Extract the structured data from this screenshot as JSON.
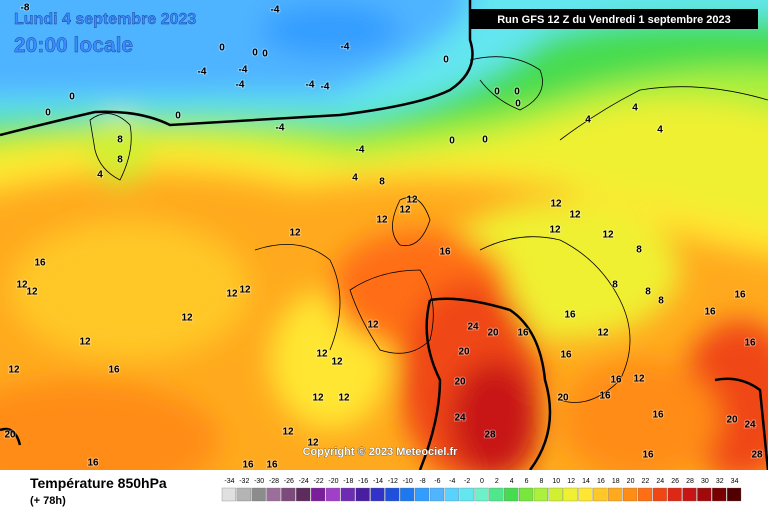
{
  "header": {
    "date": "Lundi 4 septembre 2023",
    "time": "20:00 locale",
    "run": "Run GFS 12 Z du Vendredi 1 septembre 2023",
    "copyright": "Copyright © 2023 Meteociel.fr"
  },
  "map": {
    "contour_labels": [
      -8,
      -4,
      0,
      0,
      0,
      -4,
      -4,
      -4,
      -4,
      -4,
      -4,
      0,
      0,
      0,
      0,
      0,
      0,
      0,
      -4,
      -4,
      8,
      8,
      4,
      4,
      8,
      0,
      0,
      4,
      4,
      4,
      12,
      12,
      12,
      12,
      12,
      12,
      16,
      16,
      12,
      12,
      12,
      12,
      12,
      12,
      12,
      12,
      12,
      12,
      16,
      24,
      20,
      16,
      20,
      20,
      24,
      28,
      16,
      16,
      12,
      16,
      12,
      20,
      16,
      16,
      16,
      16,
      16,
      20,
      24,
      28,
      20,
      12,
      12,
      12,
      12,
      16,
      16,
      16,
      16,
      8,
      8,
      8,
      8,
      12,
      12
    ]
  },
  "legend": {
    "title": "Température 850hPa",
    "subtitle": "(+ 78h)",
    "labels": [
      -34,
      -32,
      -30,
      -28,
      -26,
      -24,
      -22,
      -20,
      -18,
      -16,
      -14,
      -12,
      -10,
      -8,
      -6,
      -4,
      -2,
      0,
      2,
      4,
      6,
      8,
      10,
      12,
      14,
      16,
      18,
      20,
      22,
      24,
      26,
      28,
      30,
      32,
      34
    ],
    "colors": [
      "#e0e0e0",
      "#b4b4b4",
      "#8c8c8c",
      "#9c6e9c",
      "#7c4a7c",
      "#5c2c5c",
      "#7a1e9c",
      "#a040c8",
      "#6e2cb4",
      "#4a1ea0",
      "#3232c8",
      "#1e50dc",
      "#1e78f0",
      "#329cff",
      "#50b4ff",
      "#5ad2ff",
      "#64e6f0",
      "#6ef0c8",
      "#50e68c",
      "#46dc50",
      "#78e63c",
      "#aaf03c",
      "#d2f032",
      "#f0f032",
      "#ffe632",
      "#ffc828",
      "#ffaa1e",
      "#ff8c14",
      "#ff6e14",
      "#f04614",
      "#dc2814",
      "#c81414",
      "#a00a0a",
      "#780000",
      "#500000"
    ]
  }
}
